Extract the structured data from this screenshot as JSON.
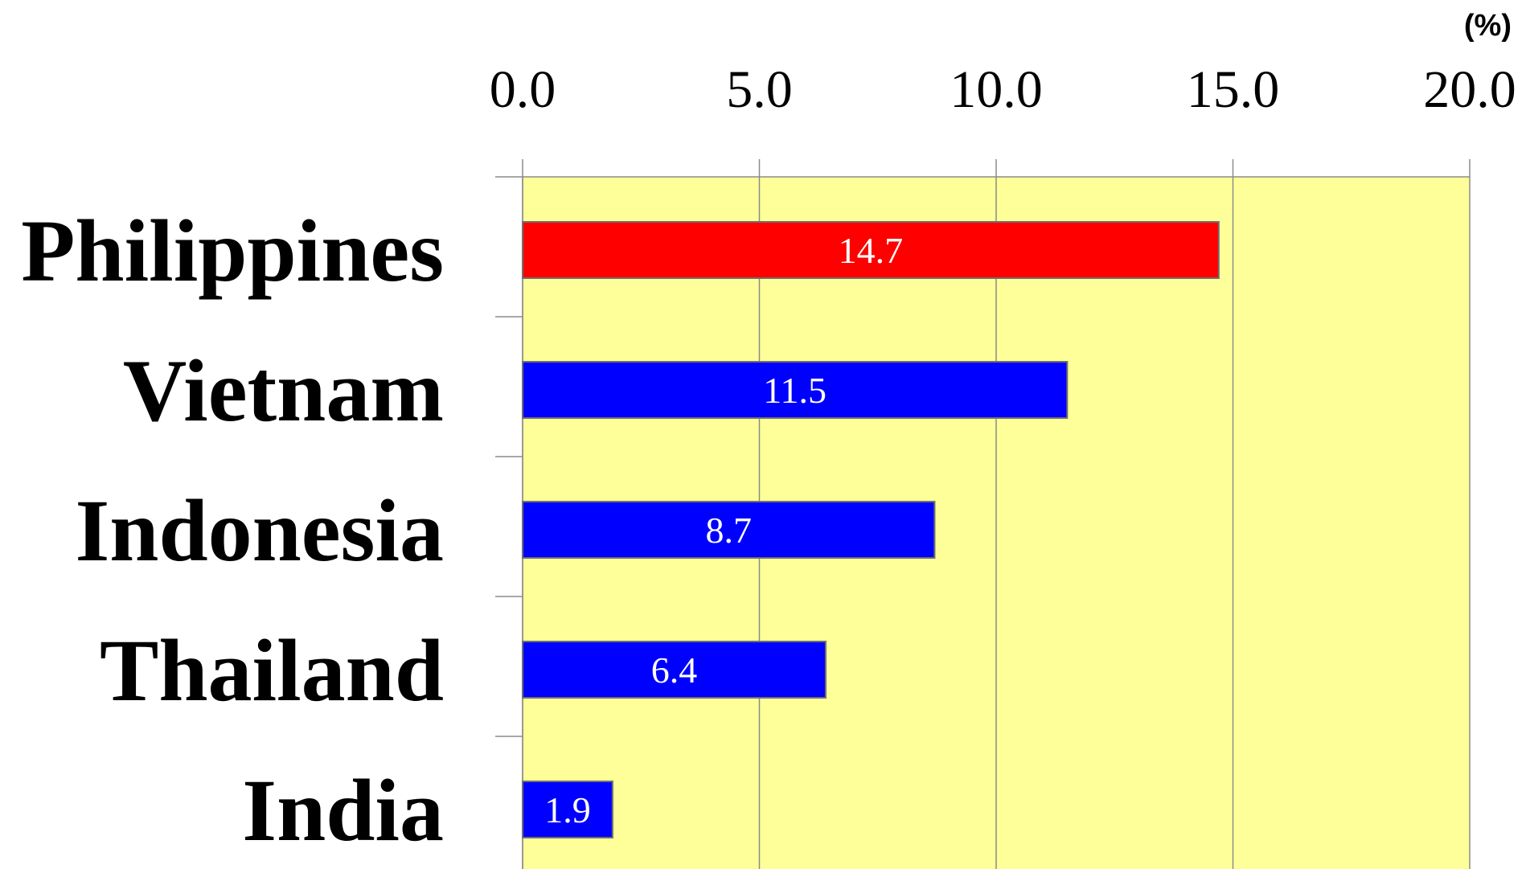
{
  "chart_data": {
    "type": "bar",
    "orientation": "horizontal",
    "unit_label": "(%)",
    "categories": [
      "Philippines",
      "Vietnam",
      "Indonesia",
      "Thailand",
      "India"
    ],
    "values": [
      14.7,
      11.5,
      8.7,
      6.4,
      1.9
    ],
    "value_labels": [
      "14.7",
      "11.5",
      "8.7",
      "6.4",
      "1.9"
    ],
    "bar_colors": [
      "#ff0000",
      "#0000ff",
      "#0000ff",
      "#0000ff",
      "#0000ff"
    ],
    "xlim": [
      0,
      20
    ],
    "ticks": [
      0,
      5,
      10,
      15,
      20
    ],
    "tick_labels": [
      "0.0",
      "5.0",
      "10.0",
      "15.0",
      "20.0"
    ],
    "x_axis_position": "top",
    "plot_background": "#ffff99",
    "grid": true,
    "legend": "none"
  }
}
